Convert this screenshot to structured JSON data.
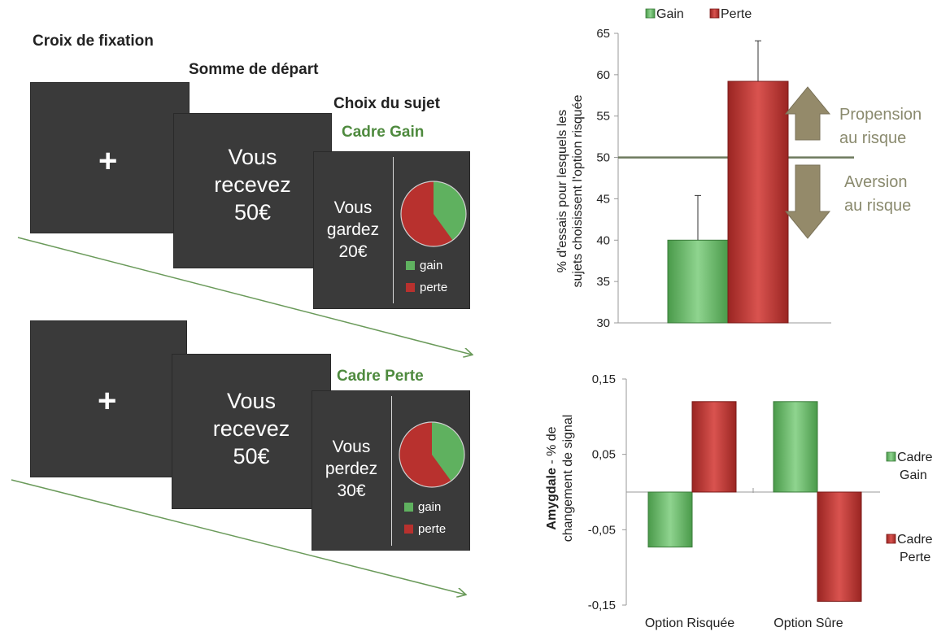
{
  "colors": {
    "gain": "#5fb15f",
    "perte": "#b8312e",
    "screen": "#3a3a3a",
    "arrow": "#6a9a5a",
    "annotation": "#8a8a6e"
  },
  "paradigm": {
    "step1_label": "Croix de fixation",
    "step2_label": "Somme de départ",
    "step3_label": "Choix du sujet",
    "fixation_symbol": "+",
    "gain_frame": {
      "title": "Cadre Gain",
      "start_line1": "Vous",
      "start_line2": "recevez",
      "start_line3": "50€",
      "choice_line1": "Vous",
      "choice_line2": "gardez",
      "choice_line3": "20€",
      "pie_gain_fraction": 0.4,
      "legend_gain": "gain",
      "legend_perte": "perte"
    },
    "loss_frame": {
      "title": "Cadre Perte",
      "start_line1": "Vous",
      "start_line2": "recevez",
      "start_line3": "50€",
      "choice_line1": "Vous",
      "choice_line2": "perdez",
      "choice_line3": "30€",
      "pie_gain_fraction": 0.4,
      "legend_gain": "gain",
      "legend_perte": "perte"
    }
  },
  "chart_data": [
    {
      "type": "bar",
      "ylabel_line1": "% d'essais pour lesquels les",
      "ylabel_line2": "sujets choisissent l'option risquée",
      "ylim": [
        30,
        65
      ],
      "yticks": [
        "65",
        "60",
        "55",
        "50",
        "45",
        "40",
        "35",
        "30"
      ],
      "tick_values": [
        65,
        60,
        55,
        50,
        45,
        40,
        35,
        30
      ],
      "reference_line": 50,
      "series": [
        {
          "name": "Gain",
          "value": 40,
          "error": 5.4
        },
        {
          "name": "Perte",
          "value": 59.2,
          "error": 4.9
        }
      ],
      "annotation_up_line1": "Propension",
      "annotation_up_line2": "au risque",
      "annotation_down_line1": "Aversion",
      "annotation_down_line2": "au risque",
      "legend_position": "top"
    },
    {
      "type": "bar",
      "ylabel_bold": "Amygdale",
      "ylabel_rest": " - % de",
      "ylabel_line2": "changement de signal",
      "ylim": [
        -0.15,
        0.15
      ],
      "yticks": [
        "0,15",
        "0,05",
        "-0,05",
        "-0,15"
      ],
      "tick_values": [
        0.15,
        0.05,
        -0.05,
        -0.15
      ],
      "categories": [
        "Option Risquée",
        "Option Sûre"
      ],
      "series": [
        {
          "name": "Cadre Gain",
          "name_line1": "Cadre",
          "name_line2": "Gain",
          "values": [
            -0.073,
            0.12
          ]
        },
        {
          "name": "Cadre Perte",
          "name_line1": "Cadre",
          "name_line2": "Perte",
          "values": [
            0.12,
            -0.145
          ]
        }
      ],
      "legend_position": "right"
    }
  ]
}
